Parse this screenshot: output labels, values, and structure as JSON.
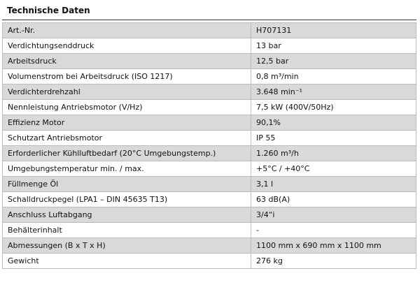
{
  "header": {
    "title": "Technische Daten"
  },
  "table": {
    "rows": [
      [
        "Art.-Nr.",
        "H707131"
      ],
      [
        "Verdichtungsenddruck",
        "13 bar"
      ],
      [
        "Arbeitsdruck",
        "12,5 bar"
      ],
      [
        "Volumenstrom bei Arbeitsdruck (ISO 1217)",
        "0,8 m³/min"
      ],
      [
        "Verdichterdrehzahl",
        "3.648 min⁻¹"
      ],
      [
        "Nennleistung Antriebsmotor (V/Hz)",
        "7,5 kW (400V/50Hz)"
      ],
      [
        "Effizienz Motor",
        "90,1%"
      ],
      [
        "Schutzart Antriebsmotor",
        "IP 55"
      ],
      [
        "Erforderlicher Kühlluftbedarf (20°C Umgebungstemp.)",
        "1.260 m³/h"
      ],
      [
        "Umgebungstemperatur min. / max.",
        "+5°C / +40°C"
      ],
      [
        "Füllmenge Öl",
        "3,1 l"
      ],
      [
        "Schalldruckpegel (LPA1 – DIN 45635 T13)",
        "63 dB(A)"
      ],
      [
        "Anschluss Luftabgang",
        "3/4“i"
      ],
      [
        "Behälterinhalt",
        "-"
      ],
      [
        "Abmessungen (B x T x H)",
        "1100 mm x 690 mm x 1100 mm"
      ],
      [
        "Gewicht",
        "276 kg"
      ]
    ]
  }
}
